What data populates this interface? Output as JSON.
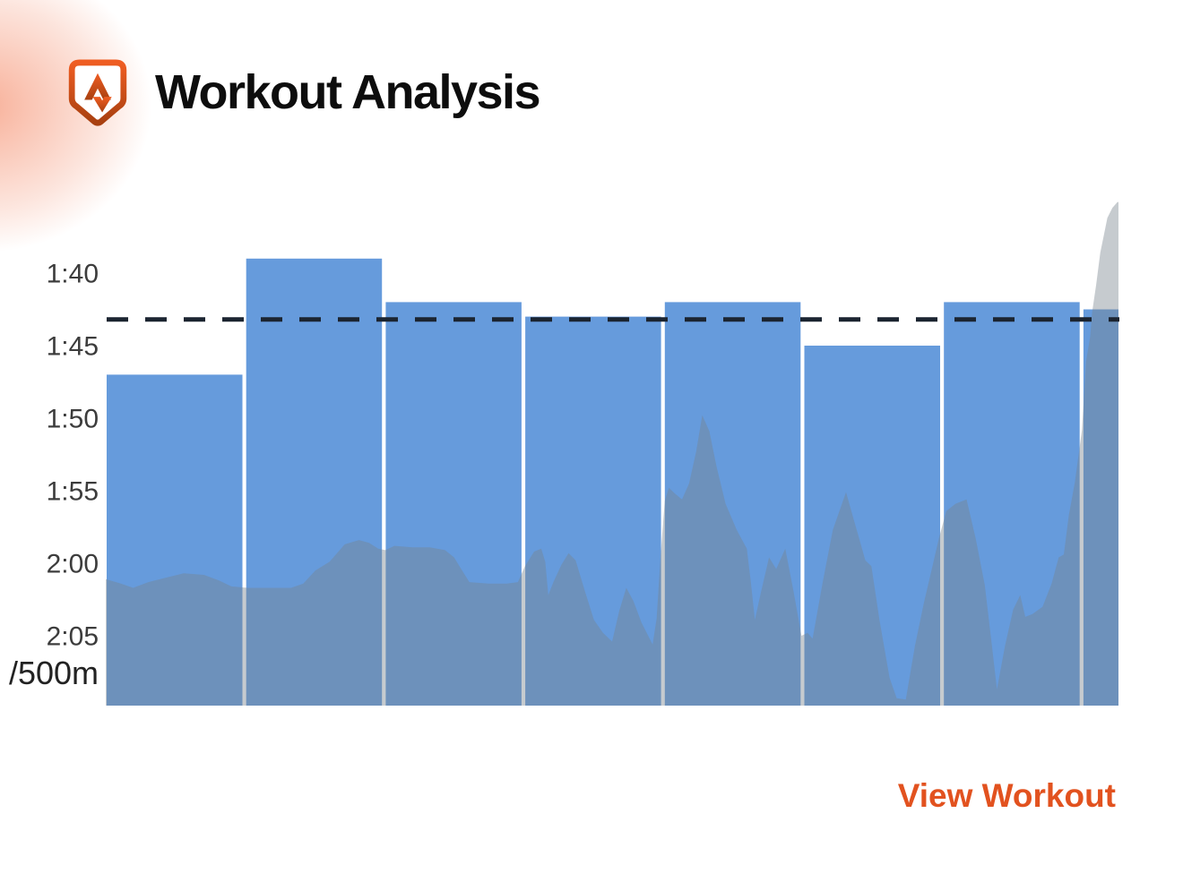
{
  "header": {
    "title": "Workout Analysis",
    "logo": "strava-shield-icon"
  },
  "footer": {
    "view_workout_label": "View Workout"
  },
  "colors": {
    "bar_blue": "#669BDC",
    "trace_overlay": "rgba(120,130,140,0.42)",
    "average_line": "#1B2430",
    "accent_orange": "#E2521F",
    "axis_text": "#3C3C3C",
    "title_text": "#0D0D0D",
    "corner_glow": "#F2704A",
    "logo_gradient_top": "#EF5D22",
    "logo_gradient_bottom": "#A84010"
  },
  "chart_data": {
    "type": "bar+area",
    "ylabel": "/500m",
    "y_axis": {
      "unit": "pace min:sec per 500m",
      "direction": "down-is-slower",
      "range_seconds": [
        95,
        130
      ],
      "grid": false
    },
    "legend": "none",
    "y_ticks": [
      {
        "label": "1:40",
        "seconds": 100
      },
      {
        "label": "1:45",
        "seconds": 105
      },
      {
        "label": "1:50",
        "seconds": 110
      },
      {
        "label": "1:55",
        "seconds": 115
      },
      {
        "label": "2:00",
        "seconds": 120
      },
      {
        "label": "2:05",
        "seconds": 125
      }
    ],
    "intervals": [
      {
        "pace": "1:47",
        "seconds": 107
      },
      {
        "pace": "1:39",
        "seconds": 99
      },
      {
        "pace": "1:42",
        "seconds": 102
      },
      {
        "pace": "1:43",
        "seconds": 103
      },
      {
        "pace": "1:42",
        "seconds": 102
      },
      {
        "pace": "1:45",
        "seconds": 105
      },
      {
        "pace": "1:42",
        "seconds": 102
      },
      {
        "pace": "1:43",
        "seconds": 102.5
      }
    ],
    "dashed_average_seconds": 103.2,
    "pace_trace": [
      [
        0.0,
        121.1
      ],
      [
        0.015,
        121.4
      ],
      [
        0.027,
        121.7
      ],
      [
        0.042,
        121.3
      ],
      [
        0.059,
        121.0
      ],
      [
        0.077,
        120.7
      ],
      [
        0.097,
        120.8
      ],
      [
        0.112,
        121.2
      ],
      [
        0.124,
        121.6
      ],
      [
        0.14,
        121.7
      ],
      [
        0.161,
        121.7
      ],
      [
        0.183,
        121.7
      ],
      [
        0.195,
        121.4
      ],
      [
        0.207,
        120.5
      ],
      [
        0.221,
        119.9
      ],
      [
        0.236,
        118.7
      ],
      [
        0.25,
        118.4
      ],
      [
        0.26,
        118.6
      ],
      [
        0.269,
        119.0
      ],
      [
        0.276,
        119.1
      ],
      [
        0.285,
        118.8
      ],
      [
        0.303,
        118.9
      ],
      [
        0.32,
        118.9
      ],
      [
        0.335,
        119.1
      ],
      [
        0.344,
        119.6
      ],
      [
        0.351,
        120.4
      ],
      [
        0.359,
        121.3
      ],
      [
        0.378,
        121.4
      ],
      [
        0.396,
        121.4
      ],
      [
        0.407,
        121.3
      ],
      [
        0.414,
        120.2
      ],
      [
        0.423,
        119.2
      ],
      [
        0.43,
        119.0
      ],
      [
        0.434,
        119.9
      ],
      [
        0.437,
        122.2
      ],
      [
        0.442,
        121.3
      ],
      [
        0.45,
        120.1
      ],
      [
        0.457,
        119.3
      ],
      [
        0.464,
        119.8
      ],
      [
        0.473,
        121.9
      ],
      [
        0.482,
        123.9
      ],
      [
        0.491,
        124.8
      ],
      [
        0.5,
        125.4
      ],
      [
        0.507,
        123.3
      ],
      [
        0.514,
        121.7
      ],
      [
        0.521,
        122.6
      ],
      [
        0.529,
        124.1
      ],
      [
        0.54,
        125.6
      ],
      [
        0.544,
        123.8
      ],
      [
        0.548,
        119.4
      ],
      [
        0.552,
        115.7
      ],
      [
        0.556,
        114.8
      ],
      [
        0.562,
        115.2
      ],
      [
        0.569,
        115.6
      ],
      [
        0.576,
        114.5
      ],
      [
        0.583,
        112.3
      ],
      [
        0.589,
        109.8
      ],
      [
        0.596,
        110.9
      ],
      [
        0.603,
        113.3
      ],
      [
        0.612,
        115.9
      ],
      [
        0.623,
        117.7
      ],
      [
        0.633,
        119.0
      ],
      [
        0.637,
        121.3
      ],
      [
        0.641,
        123.9
      ],
      [
        0.647,
        122.0
      ],
      [
        0.655,
        119.6
      ],
      [
        0.662,
        120.4
      ],
      [
        0.671,
        119.0
      ],
      [
        0.679,
        121.9
      ],
      [
        0.687,
        125.0
      ],
      [
        0.693,
        124.8
      ],
      [
        0.698,
        125.2
      ],
      [
        0.708,
        121.3
      ],
      [
        0.718,
        117.7
      ],
      [
        0.731,
        115.1
      ],
      [
        0.739,
        117.1
      ],
      [
        0.744,
        118.3
      ],
      [
        0.75,
        119.8
      ],
      [
        0.756,
        120.2
      ],
      [
        0.764,
        123.9
      ],
      [
        0.774,
        127.9
      ],
      [
        0.781,
        129.3
      ],
      [
        0.79,
        129.4
      ],
      [
        0.799,
        125.7
      ],
      [
        0.808,
        122.7
      ],
      [
        0.816,
        120.3
      ],
      [
        0.823,
        118.2
      ],
      [
        0.83,
        116.4
      ],
      [
        0.839,
        115.9
      ],
      [
        0.85,
        115.6
      ],
      [
        0.859,
        118.3
      ],
      [
        0.868,
        121.5
      ],
      [
        0.875,
        125.7
      ],
      [
        0.88,
        128.7
      ],
      [
        0.888,
        125.7
      ],
      [
        0.896,
        123.2
      ],
      [
        0.903,
        122.2
      ],
      [
        0.908,
        123.7
      ],
      [
        0.915,
        123.5
      ],
      [
        0.925,
        123.0
      ],
      [
        0.934,
        121.4
      ],
      [
        0.941,
        119.6
      ],
      [
        0.946,
        119.4
      ],
      [
        0.951,
        116.7
      ],
      [
        0.957,
        114.4
      ],
      [
        0.964,
        110.8
      ],
      [
        0.968,
        106.1
      ],
      [
        0.972,
        104.4
      ],
      [
        0.974,
        102.7
      ],
      [
        0.978,
        100.8
      ],
      [
        0.982,
        98.6
      ],
      [
        0.989,
        96.2
      ],
      [
        0.994,
        95.5
      ],
      [
        0.999,
        95.1
      ],
      [
        1.0,
        95.1
      ]
    ]
  }
}
